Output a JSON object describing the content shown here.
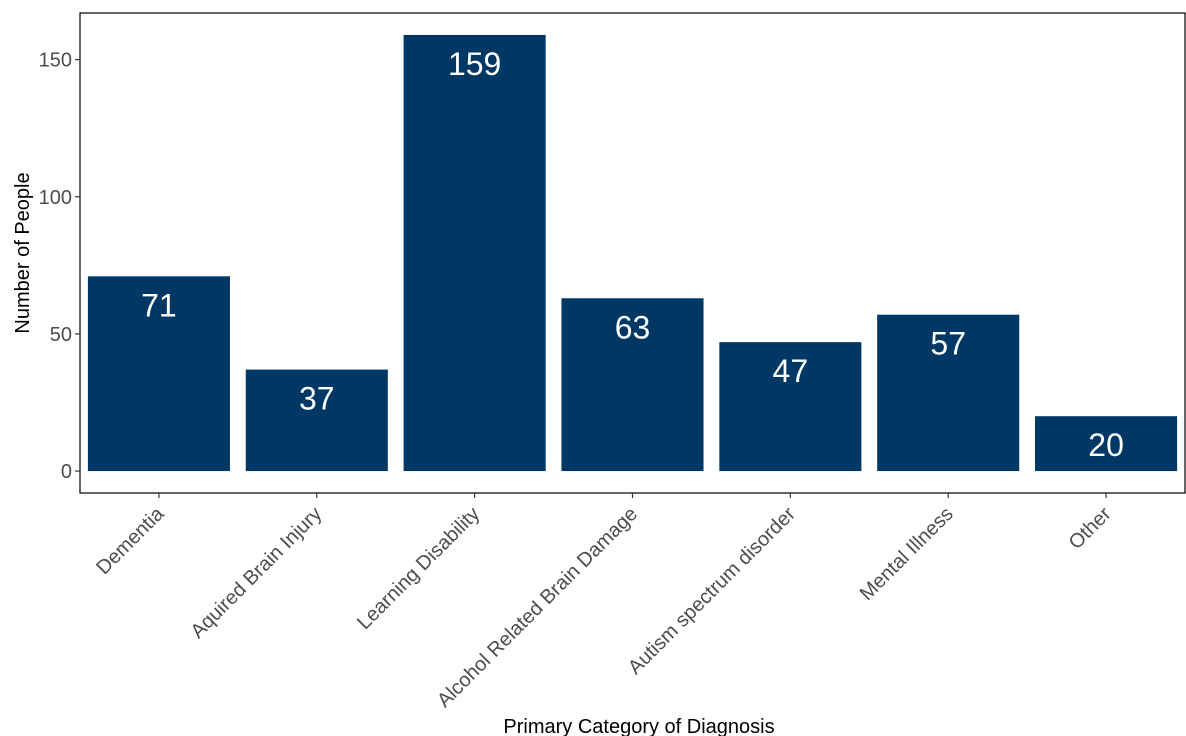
{
  "chart_data": {
    "type": "bar",
    "title": "",
    "xlabel": "Primary Category of Diagnosis",
    "ylabel": "Number of People",
    "categories": [
      "Dementia",
      "Aquired Brain Injury",
      "Learning Disability",
      "Alcohol Related Brain Damage",
      "Autism spectrum disorder",
      "Mental Illness",
      "Other"
    ],
    "values": [
      71,
      37,
      159,
      63,
      47,
      57,
      20
    ],
    "data_labels": [
      "71",
      "37",
      "159",
      "63",
      "47",
      "57",
      "20"
    ],
    "ylim": [
      -8,
      167
    ],
    "yticks": [
      0,
      50,
      100,
      150
    ],
    "ytick_labels": [
      "0",
      "50",
      "100",
      "150"
    ],
    "grid": false,
    "legend": "none",
    "bar_color": "#003865",
    "label_color": "#ffffff"
  }
}
